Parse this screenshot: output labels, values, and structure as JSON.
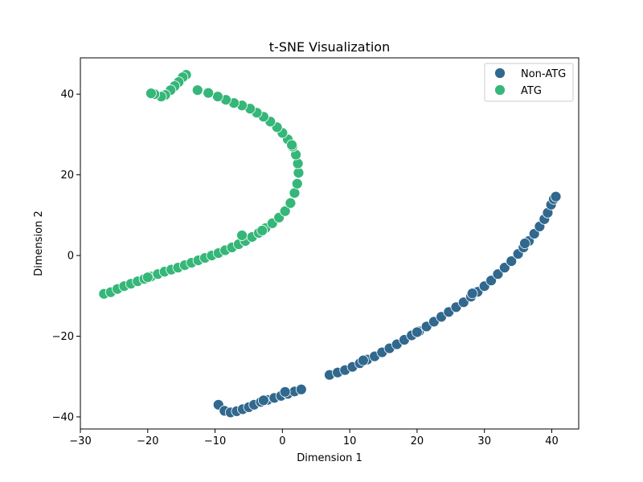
{
  "chart_data": {
    "type": "scatter",
    "title": "t-SNE Visualization",
    "xlabel": "Dimension 1",
    "ylabel": "Dimension 2",
    "xlim": [
      -30,
      44
    ],
    "ylim": [
      -43,
      49
    ],
    "xticks": [
      -30,
      -20,
      -10,
      0,
      10,
      20,
      30,
      40
    ],
    "yticks": [
      -40,
      -20,
      0,
      20,
      40
    ],
    "grid": false,
    "legend_position": "top-right",
    "series": [
      {
        "name": "Non-ATG",
        "color": "#31688e",
        "points": [
          [
            -9.5,
            -37
          ],
          [
            -8.6,
            -38.5
          ],
          [
            -7.7,
            -38.9
          ],
          [
            -6.8,
            -38.6
          ],
          [
            -5.9,
            -38.1
          ],
          [
            -5.0,
            -37.6
          ],
          [
            -4.2,
            -37.0
          ],
          [
            -3.2,
            -36.3
          ],
          [
            -2.2,
            -35.8
          ],
          [
            -1.2,
            -35.3
          ],
          [
            -0.2,
            -34.8
          ],
          [
            0.8,
            -34.3
          ],
          [
            1.8,
            -33.7
          ],
          [
            2.8,
            -33.2
          ],
          [
            0.4,
            -33.8
          ],
          [
            -2.8,
            -35.9
          ],
          [
            7.0,
            -29.6
          ],
          [
            8.2,
            -29.0
          ],
          [
            9.3,
            -28.4
          ],
          [
            10.4,
            -27.6
          ],
          [
            11.5,
            -26.7
          ],
          [
            12.6,
            -25.8
          ],
          [
            13.7,
            -25.0
          ],
          [
            14.8,
            -24.0
          ],
          [
            15.9,
            -23.0
          ],
          [
            17.0,
            -22.0
          ],
          [
            18.1,
            -20.9
          ],
          [
            19.2,
            -19.8
          ],
          [
            20.3,
            -18.8
          ],
          [
            21.4,
            -17.6
          ],
          [
            22.5,
            -16.4
          ],
          [
            23.6,
            -15.2
          ],
          [
            24.7,
            -14.0
          ],
          [
            25.8,
            -12.8
          ],
          [
            26.9,
            -11.6
          ],
          [
            28.0,
            -10.2
          ],
          [
            29.0,
            -9.0
          ],
          [
            30.0,
            -7.6
          ],
          [
            31.0,
            -6.2
          ],
          [
            32.0,
            -4.6
          ],
          [
            33.0,
            -3.0
          ],
          [
            34.0,
            -1.4
          ],
          [
            35.0,
            0.4
          ],
          [
            35.8,
            2.0
          ],
          [
            36.6,
            3.6
          ],
          [
            37.4,
            5.4
          ],
          [
            38.2,
            7.2
          ],
          [
            38.9,
            9.0
          ],
          [
            39.4,
            10.6
          ],
          [
            39.9,
            12.6
          ],
          [
            40.3,
            14.0
          ],
          [
            40.6,
            14.6
          ],
          [
            36.0,
            3.0
          ],
          [
            28.2,
            -9.4
          ],
          [
            20.0,
            -19.0
          ],
          [
            12.0,
            -26.0
          ]
        ]
      },
      {
        "name": "ATG",
        "color": "#35b779",
        "points": [
          [
            -26.5,
            -9.5
          ],
          [
            -25.5,
            -9.1
          ],
          [
            -24.5,
            -8.3
          ],
          [
            -23.5,
            -7.6
          ],
          [
            -22.5,
            -7.0
          ],
          [
            -21.5,
            -6.4
          ],
          [
            -20.5,
            -5.8
          ],
          [
            -19.5,
            -5.2
          ],
          [
            -18.5,
            -4.6
          ],
          [
            -17.5,
            -4.0
          ],
          [
            -16.5,
            -3.5
          ],
          [
            -15.5,
            -3.0
          ],
          [
            -14.5,
            -2.4
          ],
          [
            -13.5,
            -1.8
          ],
          [
            -12.5,
            -1.2
          ],
          [
            -11.5,
            -0.6
          ],
          [
            -10.5,
            0.0
          ],
          [
            -9.5,
            0.6
          ],
          [
            -8.5,
            1.3
          ],
          [
            -7.5,
            2.0
          ],
          [
            -6.5,
            2.8
          ],
          [
            -5.5,
            3.6
          ],
          [
            -4.5,
            4.6
          ],
          [
            -3.5,
            5.6
          ],
          [
            -2.5,
            6.8
          ],
          [
            -1.5,
            8.0
          ],
          [
            -0.5,
            9.4
          ],
          [
            0.4,
            11.0
          ],
          [
            1.2,
            13.0
          ],
          [
            1.8,
            15.5
          ],
          [
            2.2,
            17.8
          ],
          [
            2.4,
            20.5
          ],
          [
            2.3,
            22.8
          ],
          [
            2.0,
            25.0
          ],
          [
            1.5,
            27.0
          ],
          [
            0.8,
            28.8
          ],
          [
            0.0,
            30.4
          ],
          [
            -0.8,
            31.8
          ],
          [
            -1.8,
            33.2
          ],
          [
            -2.8,
            34.4
          ],
          [
            -3.8,
            35.4
          ],
          [
            -4.8,
            36.4
          ],
          [
            -6.0,
            37.2
          ],
          [
            -7.2,
            37.8
          ],
          [
            -8.4,
            38.6
          ],
          [
            -9.6,
            39.4
          ],
          [
            -11.0,
            40.3
          ],
          [
            -12.6,
            41.0
          ],
          [
            -14.3,
            44.8
          ],
          [
            -14.8,
            44.2
          ],
          [
            -15.4,
            43.0
          ],
          [
            -16.0,
            42.0
          ],
          [
            -16.6,
            41.0
          ],
          [
            -17.4,
            39.8
          ],
          [
            -18.0,
            39.4
          ],
          [
            -19.0,
            40.0
          ],
          [
            -19.5,
            40.2
          ],
          [
            -6.0,
            5.0
          ],
          [
            -3.0,
            6.2
          ],
          [
            1.4,
            27.4
          ],
          [
            -20.0,
            -5.4
          ]
        ]
      }
    ]
  }
}
